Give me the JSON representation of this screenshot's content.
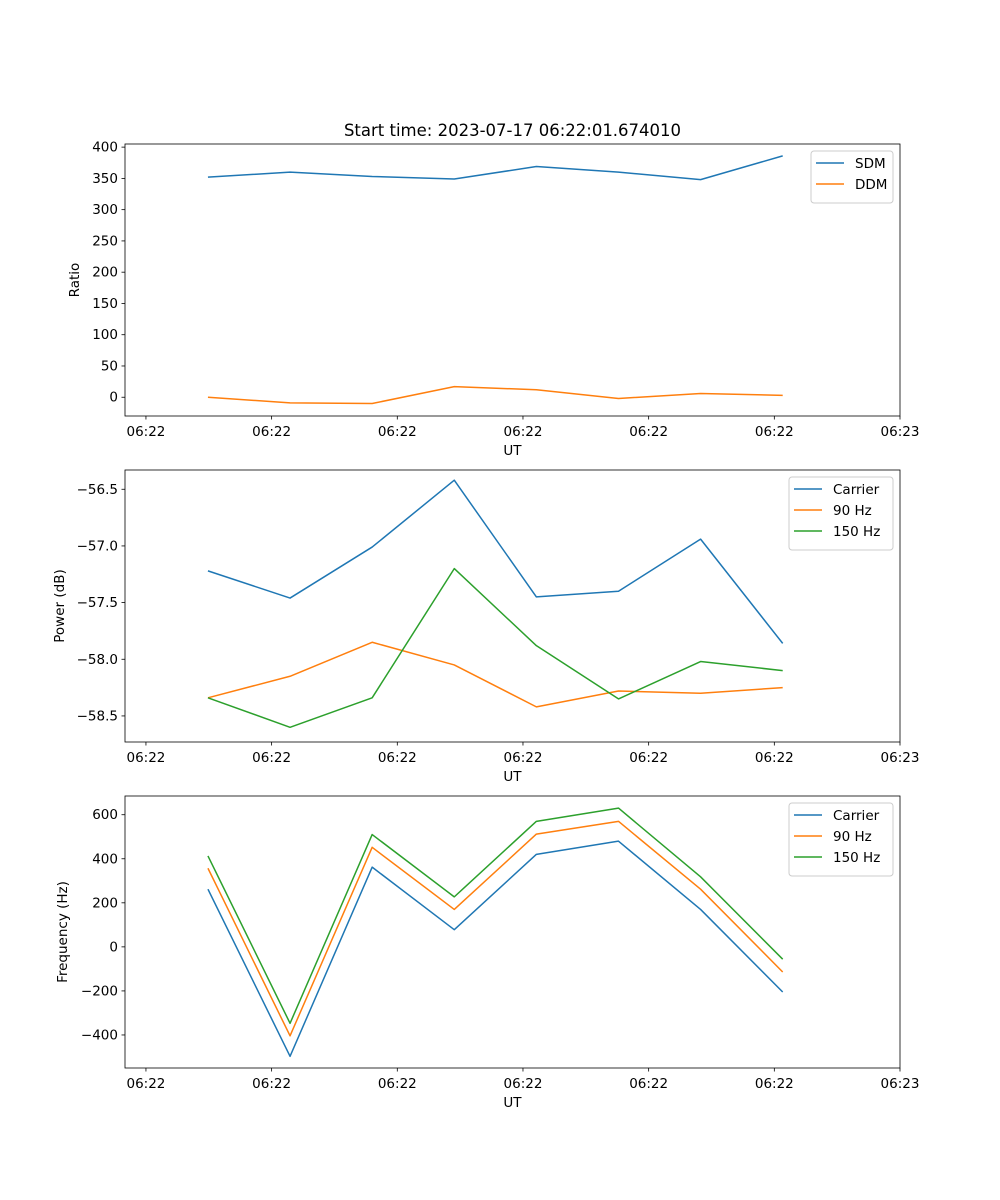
{
  "chart_data": [
    {
      "type": "line",
      "title": "Start time: 2023-07-17 06:22:01.674010",
      "xlabel": "UT",
      "ylabel": "Ratio",
      "xlim": [
        -0.125,
        4.5
      ],
      "ylim": [
        -30,
        405
      ],
      "x_ticks": [
        0,
        0.75,
        1.5,
        2.25,
        3.0,
        3.75,
        4.5
      ],
      "x_tick_labels": [
        "06:22",
        "06:22",
        "06:22",
        "06:22",
        "06:22",
        "06:22",
        "06:23"
      ],
      "y_ticks": [
        0,
        50,
        100,
        150,
        200,
        250,
        300,
        350,
        400
      ],
      "y_tick_labels": [
        "0",
        "50",
        "100",
        "150",
        "200",
        "250",
        "300",
        "350",
        "400"
      ],
      "x": [
        0.37,
        0.86,
        1.35,
        1.84,
        2.33,
        2.82,
        3.31,
        3.8
      ],
      "legend_position": "upper-right",
      "series": [
        {
          "name": "SDM",
          "color": "#1f77b4",
          "values": [
            352,
            360,
            353,
            349,
            369,
            360,
            348,
            386
          ]
        },
        {
          "name": "DDM",
          "color": "#ff7f0e",
          "values": [
            0,
            -9,
            -10,
            17,
            12,
            -2,
            6,
            3
          ]
        }
      ]
    },
    {
      "type": "line",
      "title": "",
      "xlabel": "UT",
      "ylabel": "Power (dB)",
      "xlim": [
        -0.125,
        4.5
      ],
      "ylim": [
        -58.73,
        -56.33
      ],
      "x_ticks": [
        0,
        0.75,
        1.5,
        2.25,
        3.0,
        3.75,
        4.5
      ],
      "x_tick_labels": [
        "06:22",
        "06:22",
        "06:22",
        "06:22",
        "06:22",
        "06:22",
        "06:23"
      ],
      "y_ticks": [
        -58.5,
        -58.0,
        -57.5,
        -57.0,
        -56.5
      ],
      "y_tick_labels": [
        "−58.5",
        "−58.0",
        "−57.5",
        "−57.0",
        "−56.5"
      ],
      "x": [
        0.37,
        0.86,
        1.35,
        1.84,
        2.33,
        2.82,
        3.31,
        3.8
      ],
      "legend_position": "upper-right",
      "series": [
        {
          "name": "Carrier",
          "color": "#1f77b4",
          "values": [
            -57.22,
            -57.46,
            -57.01,
            -56.42,
            -57.45,
            -57.4,
            -56.94,
            -57.86
          ]
        },
        {
          "name": "90 Hz",
          "color": "#ff7f0e",
          "values": [
            -58.34,
            -58.15,
            -57.85,
            -58.05,
            -58.42,
            -58.28,
            -58.3,
            -58.25
          ]
        },
        {
          "name": "150 Hz",
          "color": "#2ca02c",
          "values": [
            -58.34,
            -58.6,
            -58.34,
            -57.2,
            -57.88,
            -58.35,
            -58.02,
            -58.1
          ]
        }
      ]
    },
    {
      "type": "line",
      "title": "",
      "xlabel": "UT",
      "ylabel": "Frequency (Hz)",
      "xlim": [
        -0.125,
        4.5
      ],
      "ylim": [
        -550,
        685
      ],
      "x_ticks": [
        0,
        0.75,
        1.5,
        2.25,
        3.0,
        3.75,
        4.5
      ],
      "x_tick_labels": [
        "06:22",
        "06:22",
        "06:22",
        "06:22",
        "06:22",
        "06:22",
        "06:23"
      ],
      "y_ticks": [
        -400,
        -200,
        0,
        200,
        400,
        600
      ],
      "y_tick_labels": [
        "−400",
        "−200",
        "0",
        "200",
        "400",
        "600"
      ],
      "x": [
        0.37,
        0.86,
        1.35,
        1.84,
        2.33,
        2.82,
        3.31,
        3.8
      ],
      "legend_position": "upper-right",
      "series": [
        {
          "name": "Carrier",
          "color": "#1f77b4",
          "values": [
            262,
            -497,
            362,
            78,
            420,
            480,
            170,
            -205
          ]
        },
        {
          "name": "90 Hz",
          "color": "#ff7f0e",
          "values": [
            357,
            -404,
            452,
            170,
            512,
            570,
            262,
            -114
          ]
        },
        {
          "name": "150 Hz",
          "color": "#2ca02c",
          "values": [
            413,
            -347,
            510,
            227,
            570,
            630,
            318,
            -56
          ]
        }
      ]
    }
  ]
}
